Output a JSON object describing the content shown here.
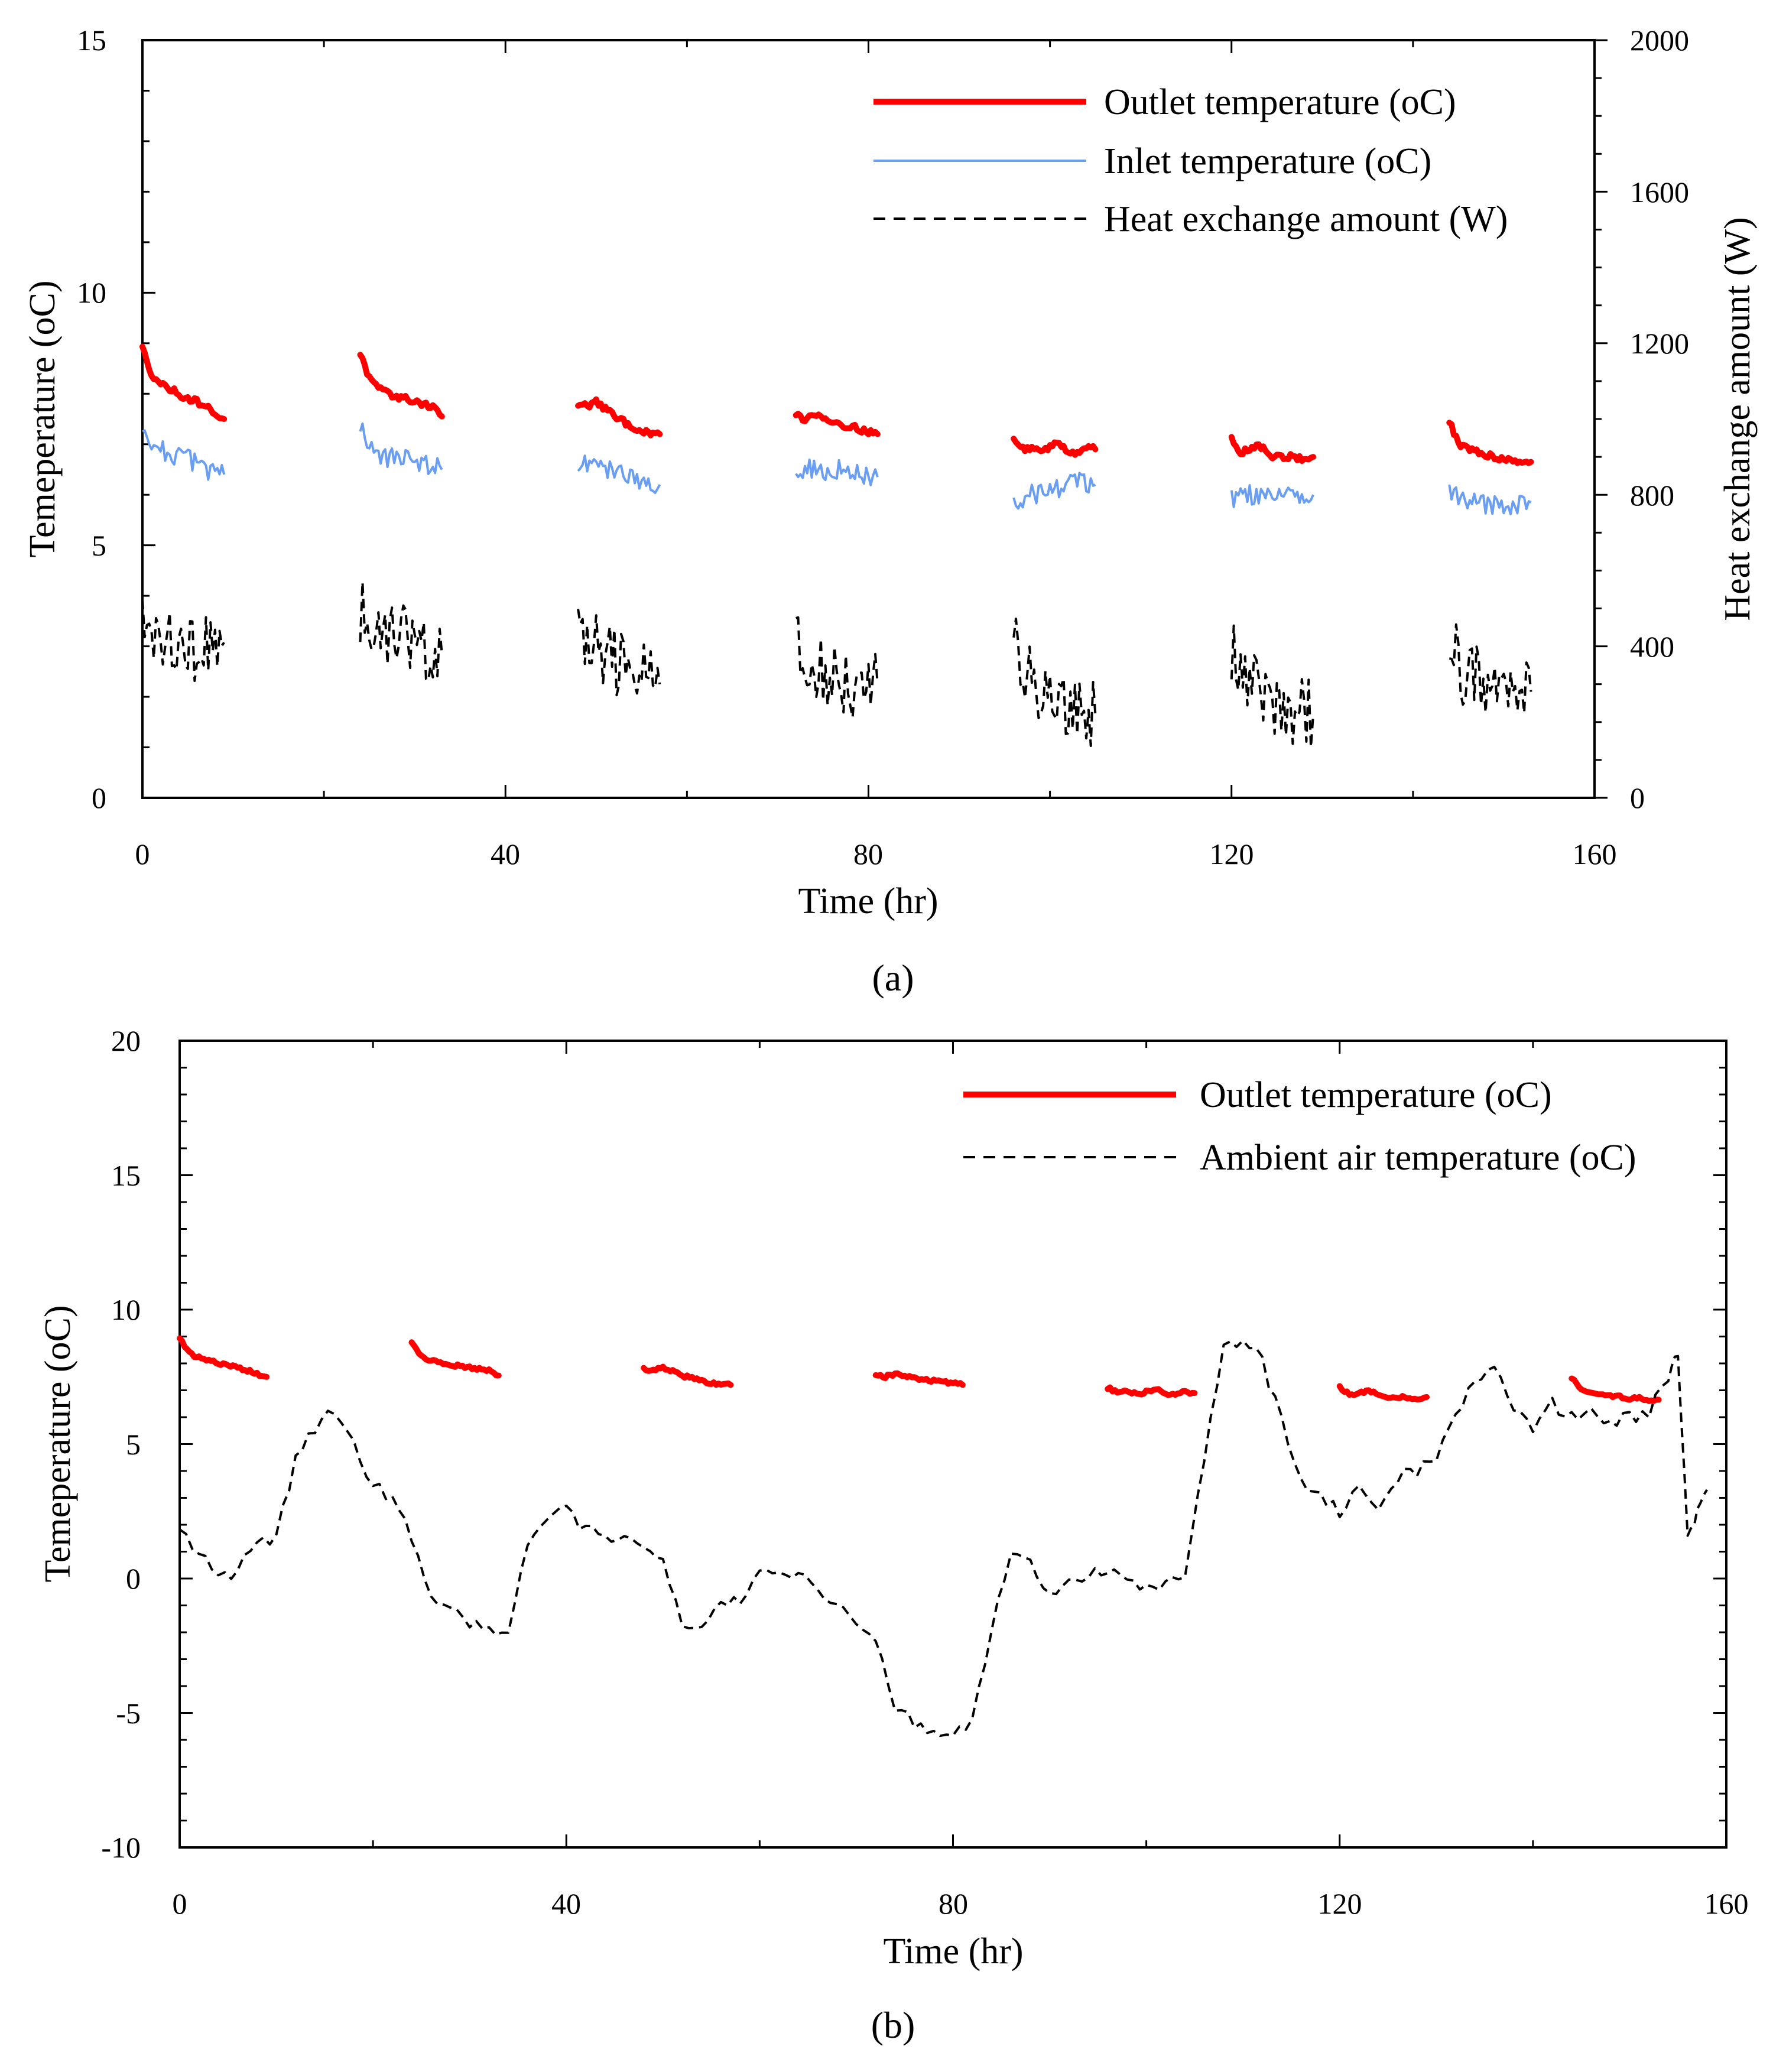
{
  "figure": {
    "panels": [
      "a",
      "b"
    ]
  },
  "chart_data": [
    {
      "id": "a",
      "type": "line",
      "caption": "(a)",
      "xlabel": "Time (hr)",
      "ylabel": "Temeperature (oC)",
      "y2label": "Heat exchange amount (W)",
      "xlim": [
        0,
        160
      ],
      "ylim": [
        0,
        15
      ],
      "y2lim": [
        0,
        2000
      ],
      "xticks": [
        "0",
        "40",
        "80",
        "120",
        "160"
      ],
      "yticks": [
        "0",
        "5",
        "10",
        "15"
      ],
      "y2ticks": [
        "0",
        "400",
        "800",
        "1200",
        "1600",
        "2000"
      ],
      "legend_position": "top-right",
      "series": [
        {
          "name": "Outlet temperature (oC)",
          "axis": "left",
          "color": "#ff0000",
          "style": "solid-thick",
          "segments": [
            {
              "start": 0,
              "end": 9,
              "values": [
                8.9,
                8.4,
                8.2,
                8.1,
                8.0,
                7.9,
                7.85,
                7.75,
                7.6,
                7.5
              ]
            },
            {
              "start": 24,
              "end": 33,
              "values": [
                8.8,
                8.3,
                8.1,
                8.0,
                7.95,
                7.9,
                7.85,
                7.8,
                7.75,
                7.55
              ]
            },
            {
              "start": 48,
              "end": 57,
              "values": [
                7.8,
                7.75,
                7.85,
                7.7,
                7.55,
                7.45,
                7.35,
                7.25,
                7.2,
                7.2
              ]
            },
            {
              "start": 72,
              "end": 81,
              "values": [
                7.6,
                7.5,
                7.6,
                7.55,
                7.45,
                7.4,
                7.35,
                7.3,
                7.25,
                7.2
              ]
            },
            {
              "start": 96,
              "end": 105,
              "values": [
                7.1,
                6.9,
                6.95,
                6.85,
                6.95,
                7.05,
                6.85,
                6.85,
                6.95,
                6.9
              ]
            },
            {
              "start": 120,
              "end": 129,
              "values": [
                7.1,
                6.85,
                6.9,
                7.0,
                6.8,
                6.75,
                6.75,
                6.75,
                6.7,
                6.75
              ]
            },
            {
              "start": 144,
              "end": 153,
              "values": [
                7.45,
                7.0,
                6.9,
                6.85,
                6.8,
                6.75,
                6.7,
                6.7,
                6.65,
                6.65
              ]
            }
          ]
        },
        {
          "name": "Inlet temperature (oC)",
          "axis": "left",
          "color": "#6a9ef2",
          "style": "solid-thin",
          "segments": [
            {
              "start": 0,
              "end": 9,
              "values": [
                7.4,
                7.0,
                6.9,
                6.8,
                6.75,
                6.7,
                6.6,
                6.5,
                6.45,
                6.4
              ]
            },
            {
              "start": 24,
              "end": 33,
              "values": [
                7.4,
                6.9,
                6.8,
                6.75,
                6.7,
                6.7,
                6.65,
                6.6,
                6.6,
                6.5
              ]
            },
            {
              "start": 48,
              "end": 57,
              "values": [
                6.5,
                6.6,
                6.7,
                6.5,
                6.45,
                6.4,
                6.35,
                6.3,
                6.25,
                6.2
              ]
            },
            {
              "start": 72,
              "end": 81,
              "values": [
                6.4,
                6.5,
                6.55,
                6.5,
                6.45,
                6.5,
                6.45,
                6.4,
                6.4,
                6.35
              ]
            },
            {
              "start": 96,
              "end": 105,
              "values": [
                5.9,
                5.9,
                6.0,
                6.05,
                6.1,
                6.15,
                6.2,
                6.25,
                6.2,
                6.2
              ]
            },
            {
              "start": 120,
              "end": 129,
              "values": [
                5.9,
                5.95,
                6.0,
                6.0,
                6.05,
                6.0,
                6.0,
                5.95,
                6.0,
                6.0
              ]
            },
            {
              "start": 144,
              "end": 153,
              "values": [
                6.1,
                5.9,
                5.85,
                5.85,
                5.8,
                5.8,
                5.8,
                5.75,
                5.8,
                5.85
              ]
            }
          ]
        },
        {
          "name": "Heat exchange amount (W)",
          "axis": "right",
          "color": "#000000",
          "style": "dashed",
          "segments": [
            {
              "start": 0,
              "end": 9,
              "values": [
                520,
                460,
                430,
                420,
                410,
                400,
                390,
                400,
                405,
                410
              ]
            },
            {
              "start": 24,
              "end": 33,
              "values": [
                500,
                470,
                450,
                440,
                430,
                420,
                410,
                400,
                395,
                380
              ]
            },
            {
              "start": 48,
              "end": 57,
              "values": [
                470,
                420,
                400,
                380,
                360,
                350,
                330,
                320,
                310,
                300
              ]
            },
            {
              "start": 72,
              "end": 81,
              "values": [
                420,
                370,
                350,
                330,
                320,
                310,
                300,
                300,
                305,
                300
              ]
            },
            {
              "start": 96,
              "end": 105,
              "values": [
                400,
                340,
                310,
                290,
                270,
                260,
                250,
                240,
                230,
                220
              ]
            },
            {
              "start": 120,
              "end": 129,
              "values": [
                390,
                330,
                310,
                290,
                270,
                250,
                240,
                230,
                225,
                220
              ]
            },
            {
              "start": 144,
              "end": 153,
              "values": [
                420,
                350,
                320,
                310,
                300,
                300,
                290,
                290,
                285,
                280
              ]
            }
          ]
        }
      ]
    },
    {
      "id": "b",
      "type": "line",
      "caption": "(b)",
      "xlabel": "Time (hr)",
      "ylabel": "Temeperature (oC)",
      "xlim": [
        0,
        160
      ],
      "ylim": [
        -10,
        20
      ],
      "xticks": [
        "0",
        "40",
        "80",
        "120",
        "160"
      ],
      "yticks": [
        "-10",
        "-5",
        "0",
        "5",
        "10",
        "15",
        "20"
      ],
      "legend_position": "top-right",
      "series": [
        {
          "name": "Outlet temperature (oC)",
          "color": "#ff0000",
          "style": "solid-thick",
          "segments": [
            {
              "start": 0,
              "end": 9,
              "values": [
                8.9,
                8.4,
                8.2,
                8.1,
                8.0,
                7.9,
                7.85,
                7.75,
                7.6,
                7.5
              ]
            },
            {
              "start": 24,
              "end": 33,
              "values": [
                8.8,
                8.3,
                8.1,
                8.0,
                7.95,
                7.9,
                7.85,
                7.8,
                7.75,
                7.55
              ]
            },
            {
              "start": 48,
              "end": 57,
              "values": [
                7.8,
                7.75,
                7.85,
                7.7,
                7.55,
                7.45,
                7.35,
                7.25,
                7.2,
                7.2
              ]
            },
            {
              "start": 72,
              "end": 81,
              "values": [
                7.6,
                7.5,
                7.6,
                7.55,
                7.45,
                7.4,
                7.35,
                7.3,
                7.25,
                7.2
              ]
            },
            {
              "start": 96,
              "end": 105,
              "values": [
                7.1,
                6.9,
                6.95,
                6.85,
                6.95,
                7.05,
                6.85,
                6.85,
                6.95,
                6.9
              ]
            },
            {
              "start": 120,
              "end": 129,
              "values": [
                7.1,
                6.85,
                6.9,
                7.0,
                6.8,
                6.75,
                6.75,
                6.75,
                6.7,
                6.75
              ]
            },
            {
              "start": 144,
              "end": 153,
              "values": [
                7.45,
                7.0,
                6.9,
                6.85,
                6.8,
                6.75,
                6.7,
                6.7,
                6.65,
                6.65
              ]
            }
          ]
        },
        {
          "name": "Ambient air temperature (oC)",
          "color": "#000000",
          "style": "dashed",
          "x": [
            0,
            2,
            4,
            6,
            8,
            10,
            12,
            14,
            16,
            18,
            20,
            22,
            24,
            26,
            28,
            30,
            32,
            34,
            36,
            38,
            40,
            42,
            44,
            46,
            48,
            50,
            52,
            54,
            56,
            58,
            60,
            62,
            64,
            66,
            68,
            70,
            72,
            74,
            76,
            78,
            80,
            82,
            84,
            86,
            88,
            90,
            92,
            94,
            96,
            98,
            100,
            102,
            104,
            106,
            108,
            110,
            112,
            114,
            116,
            118,
            120,
            122,
            124,
            126,
            128,
            130,
            132,
            134,
            136,
            138,
            140,
            142,
            144,
            146,
            148,
            150,
            152,
            154,
            155,
            156,
            157,
            158
          ],
          "values": [
            2.0,
            0.8,
            0.3,
            0.2,
            1.5,
            1.5,
            4.5,
            5.5,
            6.3,
            5.0,
            3.5,
            3.0,
            1.5,
            -0.5,
            -1.2,
            -1.6,
            -2.0,
            -2.0,
            1.2,
            2.3,
            2.5,
            1.8,
            1.6,
            1.4,
            1.4,
            0.8,
            -1.8,
            -1.7,
            -1.0,
            -0.8,
            0.4,
            0.2,
            0.2,
            -0.5,
            -1.0,
            -1.5,
            -2.3,
            -4.8,
            -5.3,
            -5.8,
            -5.8,
            -5.3,
            -2.0,
            1.0,
            0.5,
            -0.5,
            0.0,
            0.2,
            0.4,
            -0.2,
            -0.3,
            -0.2,
            0.3,
            4.5,
            8.5,
            9.0,
            8.0,
            6.0,
            3.5,
            3.0,
            2.5,
            3.5,
            2.8,
            3.8,
            4.0,
            4.5,
            6.0,
            7.5,
            7.8,
            6.2,
            5.5,
            6.5,
            6.0,
            6.3,
            5.8,
            6.0,
            6.2,
            7.5,
            8.3,
            1.5,
            2.5,
            3.3
          ]
        }
      ]
    }
  ]
}
